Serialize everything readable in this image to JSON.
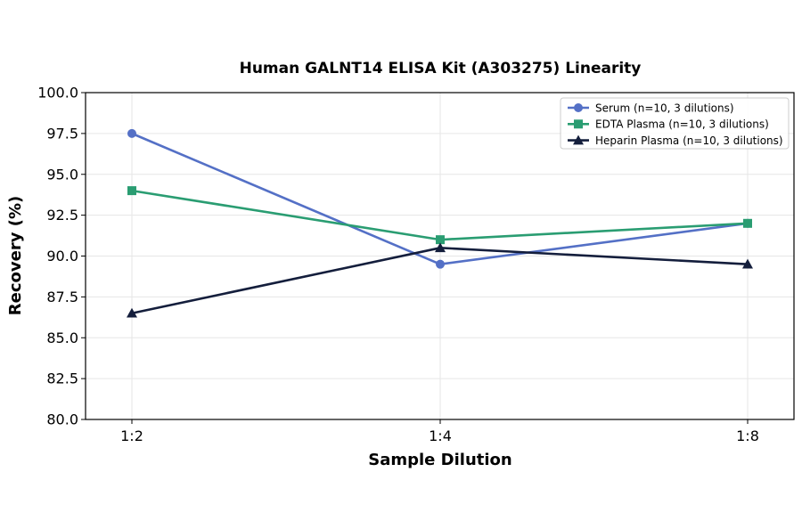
{
  "chart_data": {
    "type": "line",
    "title": "Human GALNT14 ELISA Kit (A303275) Linearity",
    "xlabel": "Sample Dilution",
    "ylabel": "Recovery (%)",
    "categories": [
      "1:2",
      "1:4",
      "1:8"
    ],
    "ylim": [
      80.0,
      100.0
    ],
    "yticks": [
      "80.0",
      "82.5",
      "85.0",
      "87.5",
      "90.0",
      "92.5",
      "95.0",
      "97.5",
      "100.0"
    ],
    "grid": true,
    "legend_position": "top-right",
    "series": [
      {
        "name": "Serum (n=10, 3 dilutions)",
        "values": [
          97.5,
          89.5,
          92.0
        ],
        "color": "#5470c6",
        "marker": "circle"
      },
      {
        "name": "EDTA Plasma (n=10, 3 dilutions)",
        "values": [
          94.0,
          91.0,
          92.0
        ],
        "color": "#2a9d72",
        "marker": "square"
      },
      {
        "name": "Heparin Plasma (n=10, 3 dilutions)",
        "values": [
          86.5,
          90.5,
          89.5
        ],
        "color": "#141e3c",
        "marker": "triangle"
      }
    ]
  }
}
